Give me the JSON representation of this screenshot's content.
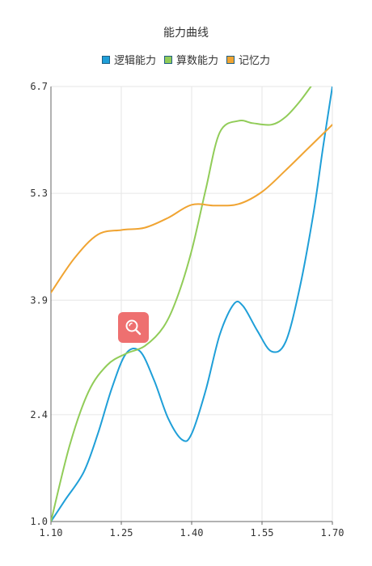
{
  "chart_data": {
    "type": "line",
    "title": "能力曲线",
    "xlabel": "",
    "ylabel": "",
    "x_ticks": [
      "1.10",
      "1.25",
      "1.40",
      "1.55",
      "1.70"
    ],
    "y_ticks": [
      "1.0",
      "2.4",
      "3.9",
      "5.3",
      "6.7"
    ],
    "xlim": [
      1.1,
      1.7
    ],
    "ylim": [
      1.0,
      6.7
    ],
    "grid": true,
    "legend_position": "top",
    "series": [
      {
        "name": "逻辑能力",
        "color": "#1f9fd8",
        "x": [
          1.1,
          1.13,
          1.17,
          1.2,
          1.23,
          1.26,
          1.29,
          1.32,
          1.35,
          1.38,
          1.4,
          1.43,
          1.46,
          1.49,
          1.51,
          1.54,
          1.57,
          1.6,
          1.63,
          1.66,
          1.68,
          1.7
        ],
        "y": [
          1.0,
          1.28,
          1.65,
          2.15,
          2.75,
          3.2,
          3.23,
          2.85,
          2.35,
          2.07,
          2.15,
          2.72,
          3.45,
          3.85,
          3.82,
          3.5,
          3.23,
          3.35,
          4.05,
          5.05,
          5.9,
          6.7
        ]
      },
      {
        "name": "算数能力",
        "color": "#91cc58",
        "x": [
          1.1,
          1.14,
          1.18,
          1.22,
          1.26,
          1.3,
          1.34,
          1.37,
          1.4,
          1.43,
          1.46,
          1.5,
          1.53,
          1.57,
          1.6,
          1.63,
          1.66
        ],
        "y": [
          1.0,
          2.0,
          2.7,
          3.05,
          3.2,
          3.3,
          3.55,
          3.95,
          4.55,
          5.35,
          6.1,
          6.25,
          6.22,
          6.2,
          6.3,
          6.5,
          6.75
        ]
      },
      {
        "name": "记忆力",
        "color": "#f0a432",
        "x": [
          1.1,
          1.15,
          1.2,
          1.25,
          1.3,
          1.35,
          1.4,
          1.45,
          1.5,
          1.55,
          1.6,
          1.65,
          1.7
        ],
        "y": [
          4.0,
          4.45,
          4.76,
          4.82,
          4.85,
          4.98,
          5.15,
          5.14,
          5.16,
          5.32,
          5.6,
          5.9,
          6.2
        ]
      }
    ]
  }
}
